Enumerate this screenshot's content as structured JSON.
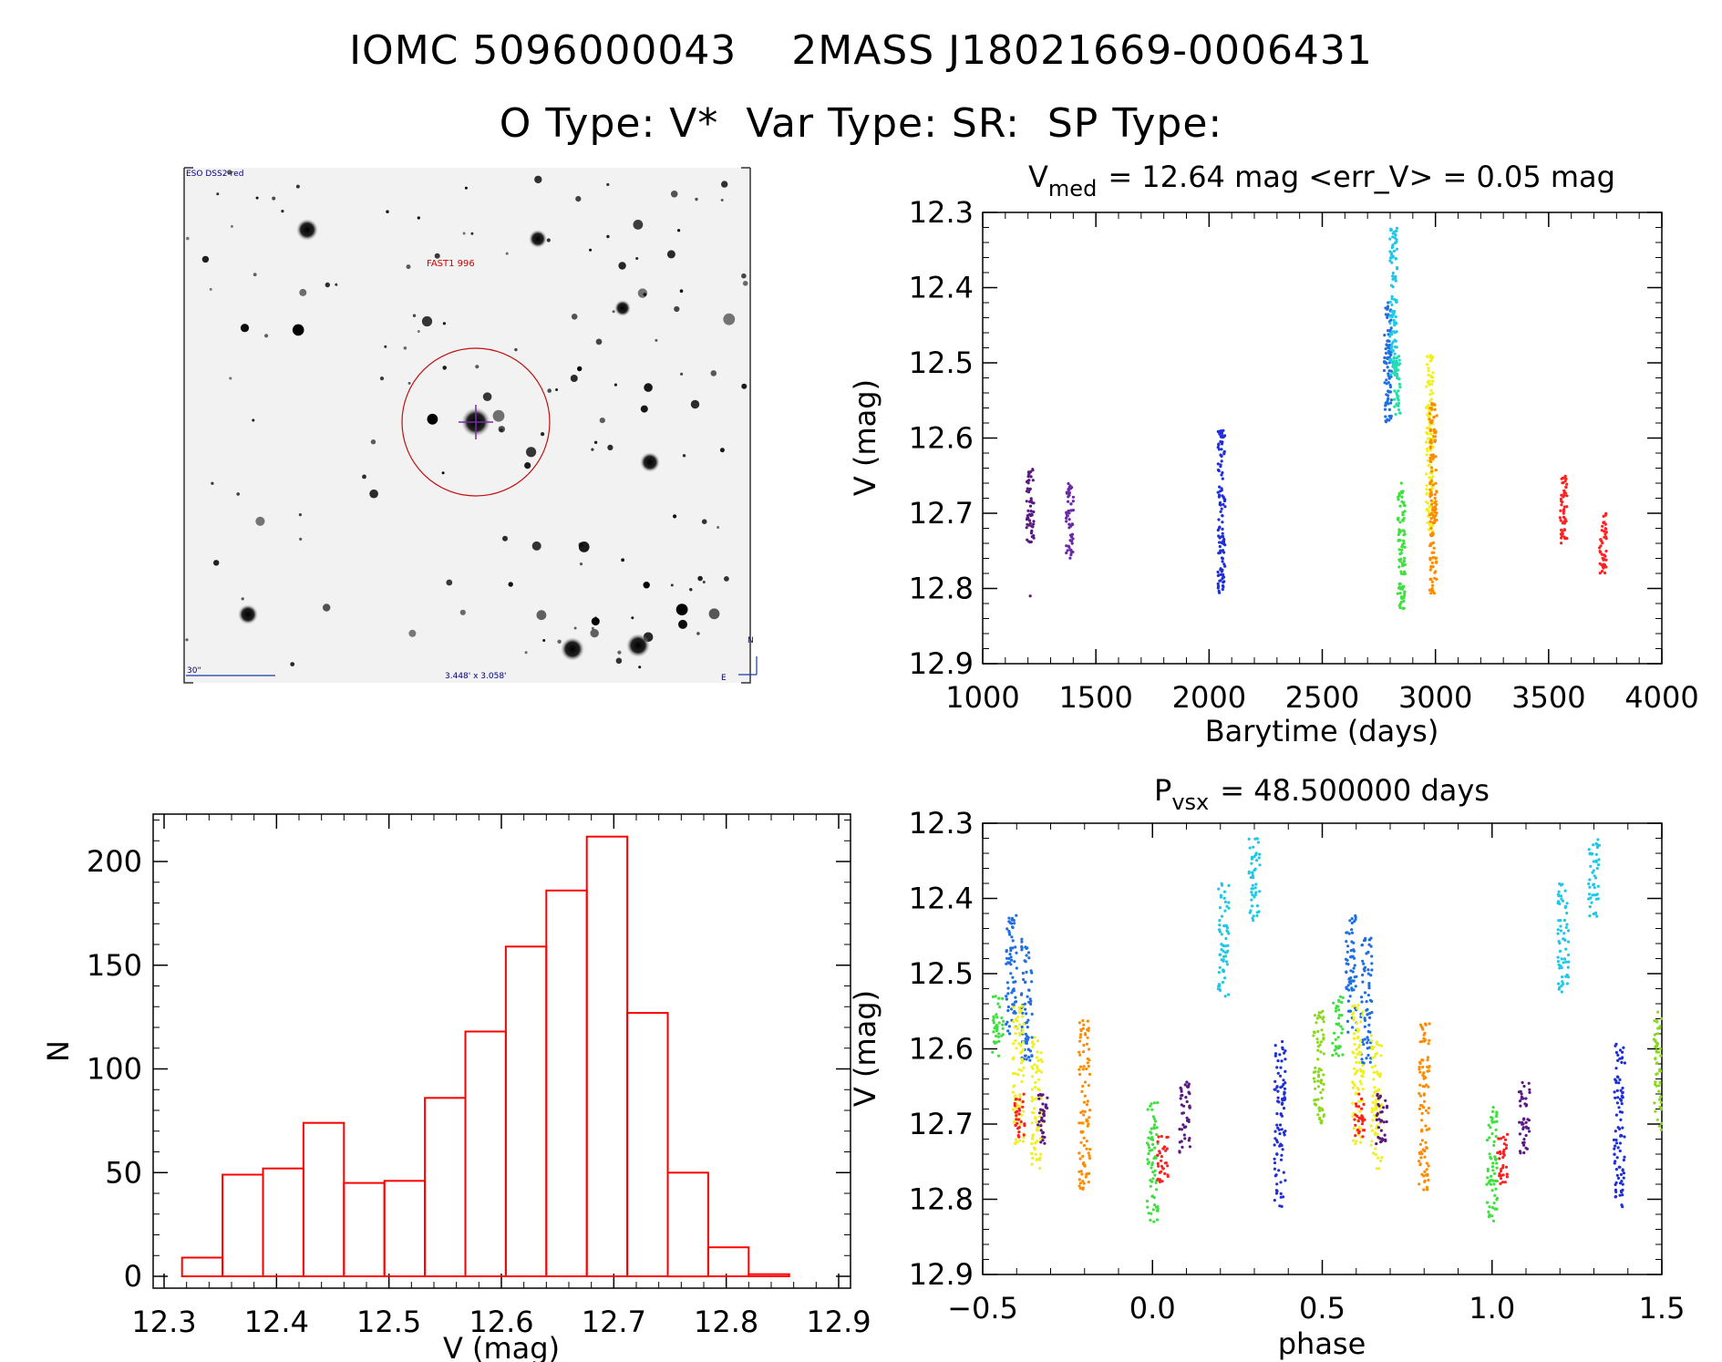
{
  "header": {
    "title_line1": "IOMC 5096000043    2MASS J18021669-0006431",
    "title_line2": "O Type: V*  Var Type: SR:  SP Type:"
  },
  "sky_image": {
    "survey_label": "ESO DSS2-red",
    "target_label": "FAST1 996",
    "scale_label": "30\"",
    "fov_label": "3.448' x 3.058'",
    "north_label": "N",
    "east_label": "E"
  },
  "chart_data": [
    {
      "id": "lightcurve",
      "type": "scatter",
      "title": "V_med = 12.64 mag <err_V> = 0.05 mag",
      "title_main": "V",
      "title_sub": "med",
      "title_rest": "= 12.64 mag <err_V> = 0.05 mag",
      "xlabel": "Barytime (days)",
      "ylabel": "V (mag)",
      "xlim": [
        1000,
        4000
      ],
      "ylim": [
        12.9,
        12.3
      ],
      "y_inverted": true,
      "xticks": [
        "1000",
        "1500",
        "2000",
        "2500",
        "3000",
        "3500",
        "4000"
      ],
      "yticks": [
        "12.3",
        "12.4",
        "12.5",
        "12.6",
        "12.7",
        "12.8",
        "12.9"
      ],
      "series": [
        {
          "name": "s1",
          "color": "#5a1a82",
          "x": 1210,
          "ymin": 12.64,
          "ymax": 12.74,
          "outliers": [
            12.81
          ]
        },
        {
          "name": "s2",
          "color": "#6a2aa8",
          "x": 1385,
          "ymin": 12.66,
          "ymax": 12.76,
          "outliers": []
        },
        {
          "name": "s3",
          "color": "#1f2fd8",
          "x": 2055,
          "ymin": 12.59,
          "ymax": 12.81,
          "outliers": []
        },
        {
          "name": "s4",
          "color": "#1f6fe0",
          "x": 2790,
          "ymin": 12.42,
          "ymax": 12.58,
          "outliers": []
        },
        {
          "name": "s5",
          "color": "#1ec8e8",
          "x": 2815,
          "ymin": 12.32,
          "ymax": 12.52,
          "outliers": []
        },
        {
          "name": "s6",
          "color": "#25e0a8",
          "x": 2830,
          "ymin": 12.49,
          "ymax": 12.57,
          "outliers": []
        },
        {
          "name": "s7",
          "color": "#3fe03f",
          "x": 2850,
          "ymin": 12.66,
          "ymax": 12.83,
          "outliers": []
        },
        {
          "name": "s8",
          "color": "#f0f020",
          "x": 2975,
          "ymin": 12.49,
          "ymax": 12.73,
          "outliers": []
        },
        {
          "name": "s9",
          "color": "#ff8c00",
          "x": 2990,
          "ymin": 12.55,
          "ymax": 12.81,
          "outliers": []
        },
        {
          "name": "s10",
          "color": "#ff2020",
          "x": 3565,
          "ymin": 12.65,
          "ymax": 12.74,
          "outliers": []
        },
        {
          "name": "s11",
          "color": "#ff2020",
          "x": 3740,
          "ymin": 12.7,
          "ymax": 12.78,
          "outliers": []
        }
      ]
    },
    {
      "id": "histogram",
      "type": "bar",
      "xlabel": "V (mag)",
      "ylabel": "N",
      "xlim": [
        12.3,
        12.9
      ],
      "ylim": [
        0,
        220
      ],
      "xticks": [
        "12.3",
        "12.4",
        "12.5",
        "12.6",
        "12.7",
        "12.8",
        "12.9"
      ],
      "yticks": [
        "0",
        "50",
        "100",
        "150",
        "200"
      ],
      "color": "#ff0000",
      "bin_edges": [
        12.316,
        12.352,
        12.388,
        12.424,
        12.46,
        12.496,
        12.532,
        12.568,
        12.604,
        12.64,
        12.676,
        12.712,
        12.748,
        12.784,
        12.82,
        12.856
      ],
      "values": [
        9,
        49,
        52,
        74,
        45,
        46,
        86,
        118,
        159,
        186,
        212,
        127,
        50,
        14,
        1
      ]
    },
    {
      "id": "phased",
      "type": "scatter",
      "title": "P_vsx = 48.500000 days",
      "title_main": "P",
      "title_sub": "vsx",
      "title_rest": "= 48.500000 days",
      "xlabel": "phase",
      "ylabel": "V (mag)",
      "xlim": [
        -0.5,
        1.5
      ],
      "ylim": [
        12.9,
        12.3
      ],
      "y_inverted": true,
      "xticks": [
        "−0.5",
        "0.0",
        "0.5",
        "1.0",
        "1.5"
      ],
      "yticks": [
        "12.3",
        "12.4",
        "12.5",
        "12.6",
        "12.7",
        "12.8",
        "12.9"
      ],
      "period_days": 48.5,
      "groups": [
        {
          "color": "#3fe03f",
          "phase": -0.455,
          "ymin": 12.53,
          "ymax": 12.61
        },
        {
          "color": "#1f6fe0",
          "phase": -0.415,
          "ymin": 12.42,
          "ymax": 12.58
        },
        {
          "color": "#1f6fe0",
          "phase": -0.37,
          "ymin": 12.45,
          "ymax": 12.62
        },
        {
          "color": "#f0f020",
          "phase": -0.395,
          "ymin": 12.54,
          "ymax": 12.73
        },
        {
          "color": "#ff2020",
          "phase": -0.39,
          "ymin": 12.66,
          "ymax": 12.72
        },
        {
          "color": "#f0f020",
          "phase": -0.34,
          "ymin": 12.58,
          "ymax": 12.76
        },
        {
          "color": "#5a1a82",
          "phase": -0.325,
          "ymin": 12.66,
          "ymax": 12.73
        },
        {
          "color": "#ff8c00",
          "phase": -0.2,
          "ymin": 12.56,
          "ymax": 12.79
        },
        {
          "color": "#3fe03f",
          "phase": 0.0,
          "ymin": 12.67,
          "ymax": 12.83
        },
        {
          "color": "#ff2020",
          "phase": 0.03,
          "ymin": 12.71,
          "ymax": 12.78
        },
        {
          "color": "#5a1a82",
          "phase": 0.095,
          "ymin": 12.64,
          "ymax": 12.74
        },
        {
          "color": "#1ec8e8",
          "phase": 0.21,
          "ymin": 12.38,
          "ymax": 12.53
        },
        {
          "color": "#1ec8e8",
          "phase": 0.3,
          "ymin": 12.32,
          "ymax": 12.43
        },
        {
          "color": "#1f2fd8",
          "phase": 0.375,
          "ymin": 12.59,
          "ymax": 12.81
        },
        {
          "color": "#8cd820",
          "phase": 0.49,
          "ymin": 12.55,
          "ymax": 12.71
        },
        {
          "color": "#3fe03f",
          "phase": 0.545,
          "ymin": 12.53,
          "ymax": 12.61
        },
        {
          "color": "#1f6fe0",
          "phase": 0.585,
          "ymin": 12.42,
          "ymax": 12.58
        },
        {
          "color": "#1f6fe0",
          "phase": 0.63,
          "ymin": 12.45,
          "ymax": 12.62
        },
        {
          "color": "#f0f020",
          "phase": 0.605,
          "ymin": 12.54,
          "ymax": 12.73
        },
        {
          "color": "#ff2020",
          "phase": 0.61,
          "ymin": 12.66,
          "ymax": 12.72
        },
        {
          "color": "#f0f020",
          "phase": 0.66,
          "ymin": 12.58,
          "ymax": 12.76
        },
        {
          "color": "#5a1a82",
          "phase": 0.675,
          "ymin": 12.66,
          "ymax": 12.73
        },
        {
          "color": "#ff8c00",
          "phase": 0.8,
          "ymin": 12.56,
          "ymax": 12.79
        },
        {
          "color": "#3fe03f",
          "phase": 1.0,
          "ymin": 12.67,
          "ymax": 12.83
        },
        {
          "color": "#ff2020",
          "phase": 1.03,
          "ymin": 12.71,
          "ymax": 12.78
        },
        {
          "color": "#5a1a82",
          "phase": 1.095,
          "ymin": 12.64,
          "ymax": 12.74
        },
        {
          "color": "#1ec8e8",
          "phase": 1.21,
          "ymin": 12.38,
          "ymax": 12.53
        },
        {
          "color": "#1ec8e8",
          "phase": 1.3,
          "ymin": 12.32,
          "ymax": 12.43
        },
        {
          "color": "#1f2fd8",
          "phase": 1.375,
          "ymin": 12.59,
          "ymax": 12.81
        },
        {
          "color": "#8cd820",
          "phase": 1.49,
          "ymin": 12.55,
          "ymax": 12.71
        }
      ]
    }
  ]
}
